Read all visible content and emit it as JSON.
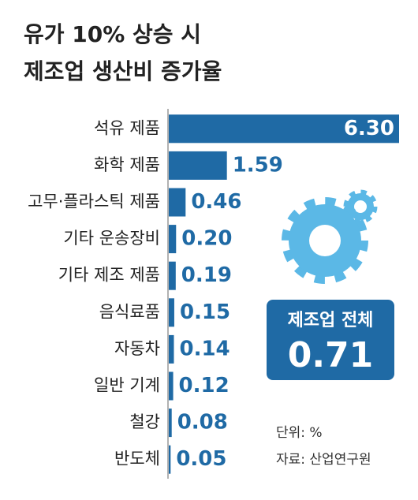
{
  "chart_data": {
    "type": "hbar",
    "title": [
      "유가 10% 상승 시",
      "제조업 생산비 증가율"
    ],
    "categories": [
      "석유 제품",
      "화학 제품",
      "고무·플라스틱 제품",
      "기타 운송장비",
      "기타 제조 제품",
      "음식료품",
      "자동차",
      "일반 기계",
      "철강",
      "반도체"
    ],
    "values": [
      6.3,
      1.59,
      0.46,
      0.2,
      0.19,
      0.15,
      0.14,
      0.12,
      0.08,
      0.05
    ],
    "value_labels": [
      "6.30",
      "1.59",
      "0.46",
      "0.20",
      "0.19",
      "0.15",
      "0.14",
      "0.12",
      "0.08",
      "0.05"
    ],
    "color": "#1f6aa5",
    "xlim": [
      0,
      6.3
    ],
    "total": {
      "label": "제조업 전체",
      "value": 0.71
    },
    "notes": [
      "단위: %",
      "자료: 산업연구원"
    ]
  }
}
